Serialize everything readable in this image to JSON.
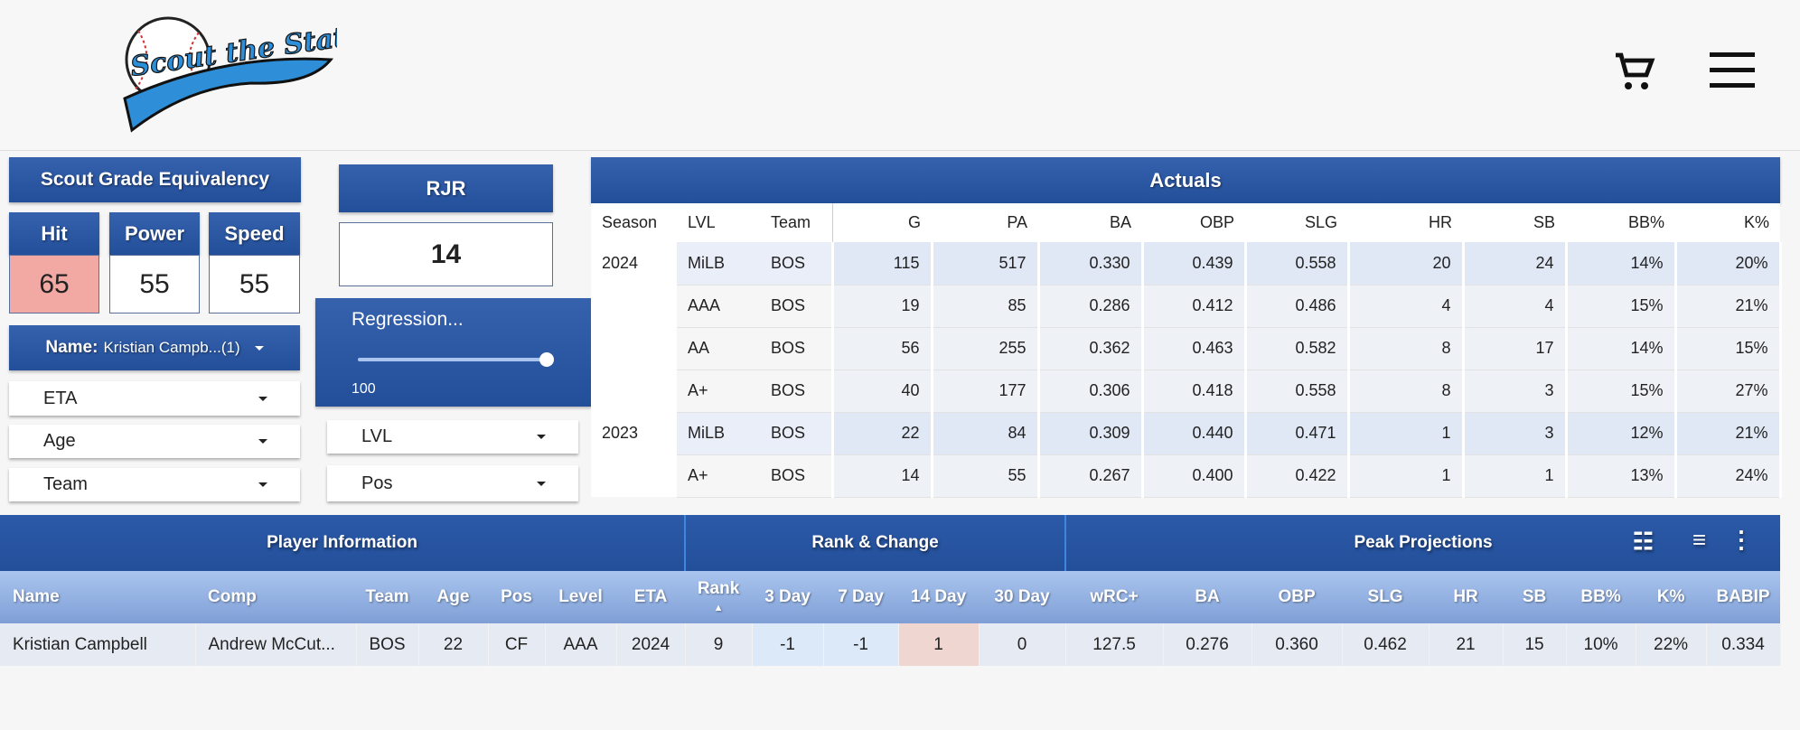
{
  "logo_text": "Scout the Statline",
  "header": {
    "cart_icon": "cart-icon",
    "menu_icon": "hamburger-menu-icon"
  },
  "scout_grade": {
    "title": "Scout Grade Equivalency",
    "grades": [
      {
        "label": "Hit",
        "value": "65",
        "highlight": "#f2a9a3"
      },
      {
        "label": "Power",
        "value": "55"
      },
      {
        "label": "Speed",
        "value": "55"
      }
    ]
  },
  "rjr": {
    "title": "RJR",
    "value": "14"
  },
  "regression": {
    "label": "Regression...",
    "value": "100",
    "slider_percent": 100
  },
  "filters": {
    "name_label": "Name:",
    "name_value": "Kristian Campb...(1)",
    "eta": "ETA",
    "age": "Age",
    "team": "Team",
    "lvl": "LVL",
    "pos": "Pos"
  },
  "actuals": {
    "title": "Actuals",
    "columns": [
      "Season",
      "LVL",
      "Team",
      "G",
      "PA",
      "BA",
      "OBP",
      "SLG",
      "HR",
      "SB",
      "BB%",
      "K%"
    ],
    "rows": [
      [
        "2024",
        "MiLB",
        "BOS",
        "115",
        "517",
        "0.330",
        "0.439",
        "0.558",
        "20",
        "24",
        "14%",
        "20%"
      ],
      [
        "",
        "AAA",
        "BOS",
        "19",
        "85",
        "0.286",
        "0.412",
        "0.486",
        "4",
        "4",
        "15%",
        "21%"
      ],
      [
        "",
        "AA",
        "BOS",
        "56",
        "255",
        "0.362",
        "0.463",
        "0.582",
        "8",
        "17",
        "14%",
        "15%"
      ],
      [
        "",
        "A+",
        "BOS",
        "40",
        "177",
        "0.306",
        "0.418",
        "0.558",
        "8",
        "3",
        "15%",
        "27%"
      ],
      [
        "2023",
        "MiLB",
        "BOS",
        "22",
        "84",
        "0.309",
        "0.440",
        "0.471",
        "1",
        "3",
        "12%",
        "21%"
      ],
      [
        "",
        "A+",
        "BOS",
        "14",
        "55",
        "0.267",
        "0.400",
        "0.422",
        "1",
        "1",
        "13%",
        "24%"
      ]
    ]
  },
  "players": {
    "groups": [
      "Player Information",
      "Rank & Change",
      "Peak Projections"
    ],
    "columns": [
      "Name",
      "Comp",
      "Team",
      "Age",
      "Pos",
      "Level",
      "ETA",
      "Rank",
      "3 Day",
      "7 Day",
      "14 Day",
      "30 Day",
      "wRC+",
      "BA",
      "OBP",
      "SLG",
      "HR",
      "SB",
      "BB%",
      "K%",
      "BABIP"
    ],
    "sort_indicator": "▲",
    "rows": [
      [
        "Kristian Campbell",
        "Andrew McCut...",
        "BOS",
        "22",
        "CF",
        "AAA",
        "2024",
        "9",
        "-1",
        "-1",
        "1",
        "0",
        "127.5",
        "0.276",
        "0.360",
        "0.462",
        "21",
        "15",
        "10%",
        "22%",
        "0.334"
      ]
    ],
    "toolbar_icons": [
      "columns-settings-icon",
      "filter-icon",
      "more-vert-icon"
    ],
    "colors": {
      "negative": "#dbe9f8",
      "positive": "#f0d6d0"
    }
  }
}
